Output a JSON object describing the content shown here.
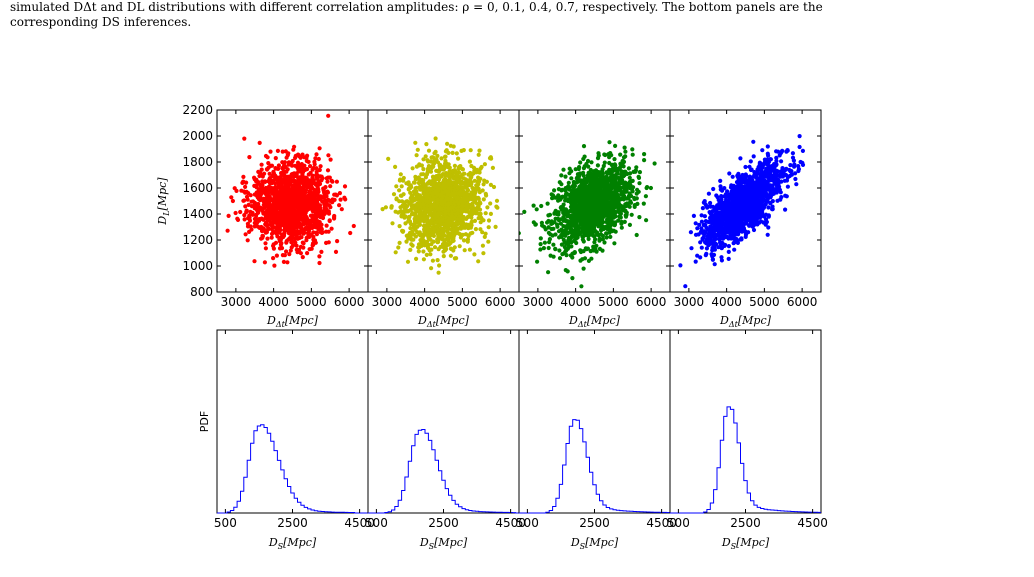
{
  "caption": {
    "line1": "simulated DΔt and DL distributions with different correlation amplitudes: ρ = 0, 0.1, 0.4, 0.7, respectively. The bottom panels are the",
    "line2": "corresponding DS inferences."
  },
  "footer_fragment": "",
  "colors": {
    "red": "#ff0000",
    "yellow": "#bfbf00",
    "green": "#008000",
    "blue": "#0000ff",
    "hist": "#0000ff"
  },
  "chart_data": [
    {
      "type": "scatter",
      "panels": [
        {
          "color": "#ff0000",
          "rho": 0.0
        },
        {
          "color": "#bfbf00",
          "rho": 0.1
        },
        {
          "color": "#008000",
          "rho": 0.4
        },
        {
          "color": "#0000ff",
          "rho": 0.7
        }
      ],
      "x_center": 4450,
      "x_sd": 520,
      "y_center": 1470,
      "y_sd": 160,
      "points_per_panel": 1500,
      "xlim": [
        2500,
        6500
      ],
      "ylim": [
        800,
        2200
      ],
      "xticks": [
        3000,
        4000,
        5000,
        6000
      ],
      "xtick_labels": [
        "3000",
        "4000",
        "5000",
        "6000"
      ],
      "yticks": [
        800,
        1000,
        1200,
        1400,
        1600,
        1800,
        2000,
        2200
      ],
      "ytick_labels": [
        "800",
        "1000",
        "1200",
        "1400",
        "1600",
        "1800",
        "2000",
        "2200"
      ],
      "xlabel_main": "D",
      "xlabel_sub": "Δt",
      "xlabel_unit": "[Mpc]",
      "ylabel_main": "D",
      "ylabel_sub": "L",
      "ylabel_unit": "[Mpc]"
    },
    {
      "type": "histogram",
      "xlim": [
        250,
        4750
      ],
      "xticks": [
        500,
        2500,
        4500
      ],
      "xtick_labels": [
        "500",
        "2500",
        "4500"
      ],
      "bin_width": 100,
      "panels": [
        {
          "mode": 1500,
          "sd_left": 300,
          "sd_right": 550,
          "peak": 0.82
        },
        {
          "mode": 1800,
          "sd_left": 310,
          "sd_right": 480,
          "peak": 0.78
        },
        {
          "mode": 1900,
          "sd_left": 260,
          "sd_right": 360,
          "peak": 0.88
        },
        {
          "mode": 2000,
          "sd_left": 230,
          "sd_right": 300,
          "peak": 1.0
        }
      ],
      "ylabel": "PDF",
      "xlabel_main": "D",
      "xlabel_sub": "S",
      "xlabel_unit": "[Mpc]"
    }
  ]
}
